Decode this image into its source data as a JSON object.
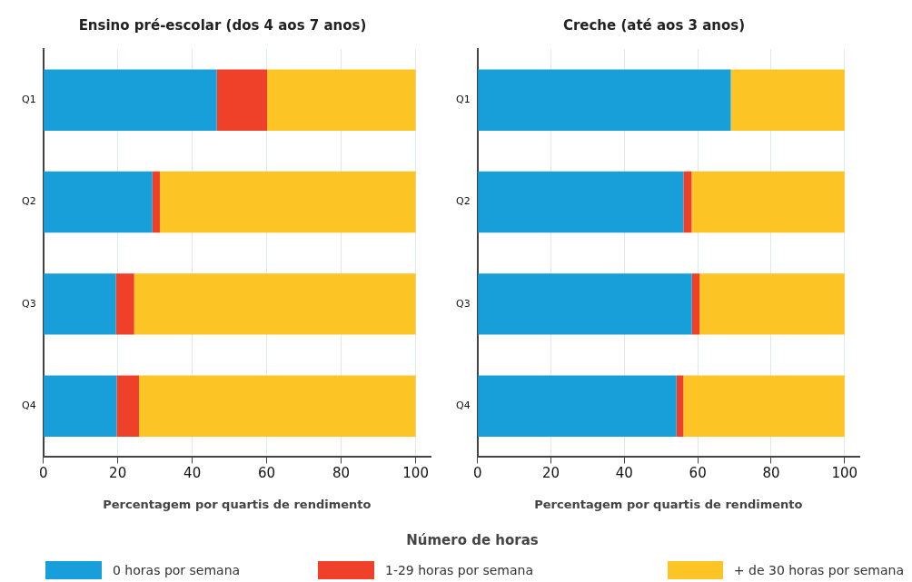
{
  "chart_data": [
    {
      "type": "bar",
      "title": "Ensino pré-escolar (dos 4 aos 7 anos)",
      "xlabel": "Percentagem por quartis de rendimento",
      "orientation": "horizontal",
      "stacked": true,
      "categories": [
        "Q1",
        "Q2",
        "Q3",
        "Q4"
      ],
      "xlim": [
        0,
        104
      ],
      "xticks": [
        0,
        20,
        40,
        60,
        80,
        100
      ],
      "grid": "x",
      "legend": "bottom",
      "legend_title": "Número de horas",
      "series": [
        {
          "name": "0 horas por semana",
          "color": "#189fda",
          "values": [
            46.6,
            29.3,
            19.5,
            19.7
          ]
        },
        {
          "name": "1-29 horas por semana",
          "color": "#ef4129",
          "values": [
            13.5,
            2.0,
            4.9,
            6.0
          ]
        },
        {
          "name": "+ de 30 horas por semana",
          "color": "#fdc425",
          "values": [
            39.9,
            68.7,
            75.6,
            74.3
          ]
        }
      ]
    },
    {
      "type": "bar",
      "title": "Creche (até aos 3 anos)",
      "xlabel": "Percentagem por quartis de rendimento",
      "orientation": "horizontal",
      "stacked": true,
      "categories": [
        "Q1",
        "Q2",
        "Q3",
        "Q4"
      ],
      "xlim": [
        0,
        104
      ],
      "xticks": [
        0,
        20,
        40,
        60,
        80,
        100
      ],
      "grid": "x",
      "series": [
        {
          "color": "#189fda",
          "values": [
            69.0,
            56.1,
            58.4,
            54.2
          ]
        },
        {
          "color": "#ef4129",
          "values": [
            0,
            2.2,
            2.1,
            1.9
          ]
        },
        {
          "color": "#fdc425",
          "values": [
            31.0,
            41.7,
            39.5,
            43.9
          ]
        }
      ]
    }
  ]
}
